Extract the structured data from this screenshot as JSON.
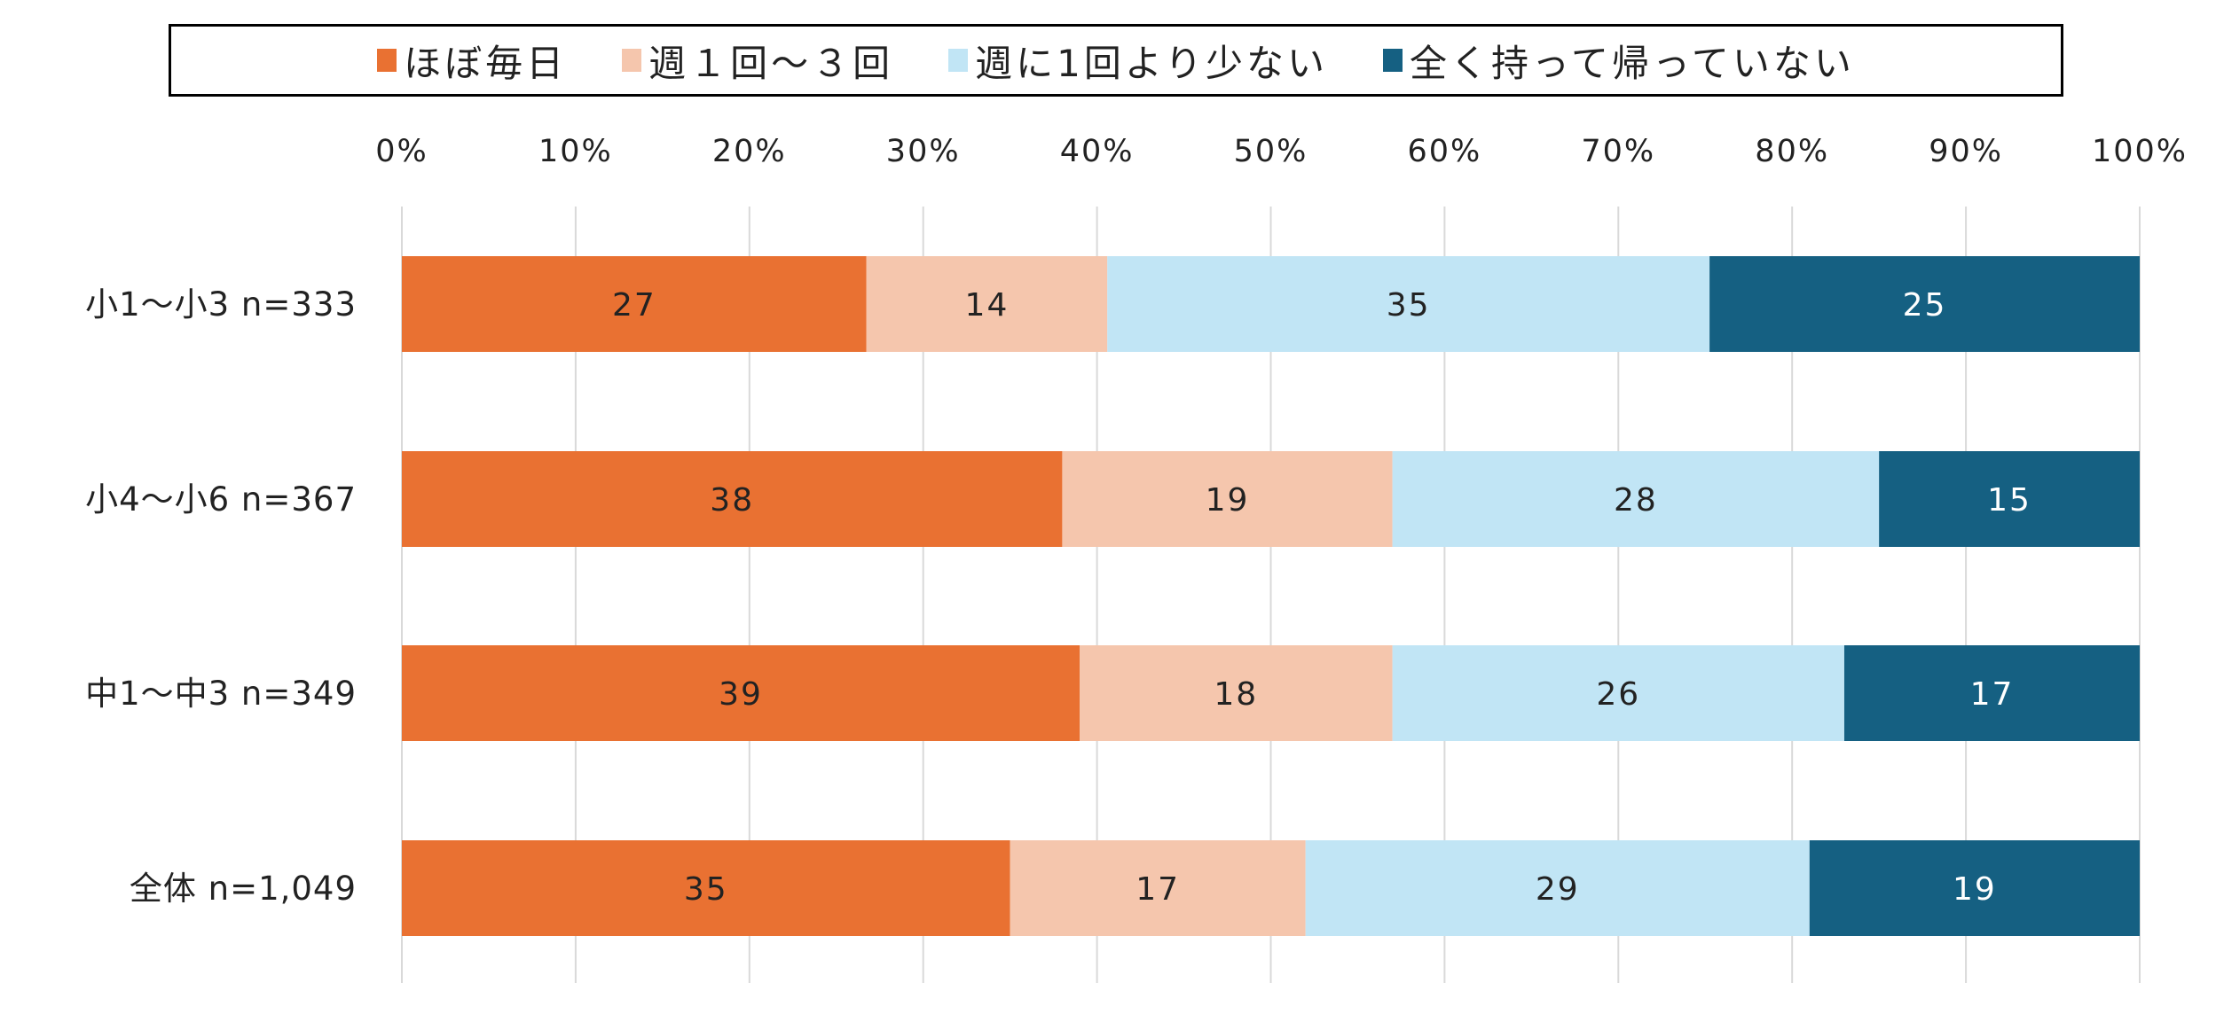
{
  "chart_data": {
    "type": "bar",
    "orientation": "horizontal",
    "stacked": "100%",
    "categories": [
      "小1〜小3 n=333",
      "小4〜小6 n=367",
      "中1〜中3 n=349",
      "全体 n=1,049"
    ],
    "series": [
      {
        "name": "ほぼ毎日",
        "color": "#E97132",
        "label_color": "#222222",
        "values": [
          27,
          38,
          39,
          35
        ]
      },
      {
        "name": "週１回〜３回",
        "color": "#F5C6AD",
        "label_color": "#222222",
        "values": [
          14,
          19,
          18,
          17
        ]
      },
      {
        "name": "週に1回より少ない",
        "color": "#C1E5F5",
        "label_color": "#222222",
        "values": [
          35,
          28,
          26,
          29
        ]
      },
      {
        "name": "全く持って帰っていない",
        "color": "#156082",
        "label_color": "#FFFFFF",
        "values": [
          25,
          15,
          17,
          19
        ]
      }
    ],
    "x_ticks": [
      "0%",
      "10%",
      "20%",
      "30%",
      "40%",
      "50%",
      "60%",
      "70%",
      "80%",
      "90%",
      "100%"
    ],
    "xlim": [
      0,
      100
    ],
    "grid": true,
    "legend_position": "top",
    "title": "",
    "xlabel": "",
    "ylabel": ""
  }
}
